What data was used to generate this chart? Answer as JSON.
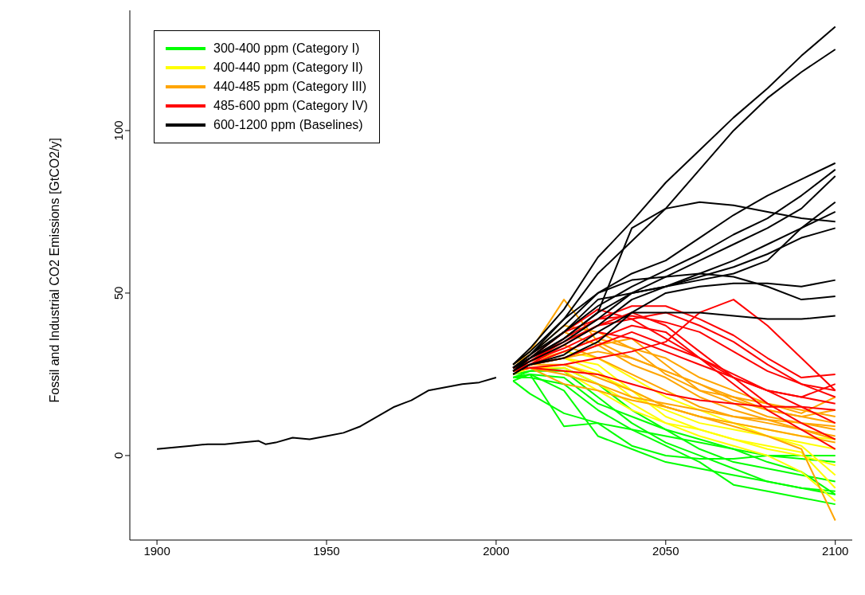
{
  "chart_data": {
    "type": "line",
    "ylabel": "Fossil and Industrial CO2 Emissions [GtCO2/y]",
    "xlim": [
      1892,
      2105
    ],
    "xticks": [
      1900,
      1950,
      2000,
      2050,
      2100
    ],
    "ylim": [
      -26,
      137
    ],
    "yticks": [
      0,
      50,
      100
    ],
    "legend": "top left",
    "grid": false,
    "series": [
      {
        "color": "#000000",
        "x": [
          1900,
          1905,
          1910,
          1915,
          1920,
          1925,
          1930,
          1932,
          1935,
          1940,
          1945,
          1950,
          1955,
          1960,
          1965,
          1970,
          1975,
          1980,
          1985,
          1990,
          1995,
          2000
        ],
        "values": [
          2,
          2.5,
          3,
          3.5,
          3.5,
          4,
          4.5,
          3.5,
          4,
          5.5,
          5,
          6,
          7,
          9,
          12,
          15,
          17,
          20,
          21,
          22,
          22.5,
          24
        ]
      },
      {
        "name": "300-400 ppm (Category I)",
        "color": "#00ff00",
        "x": [
          2005,
          2010,
          2020,
          2030,
          2040,
          2050,
          2060,
          2070,
          2080,
          2090,
          2100
        ],
        "values": [
          24,
          25,
          9,
          10,
          8,
          6,
          4,
          2,
          0,
          -1,
          -2
        ]
      },
      {
        "color": "#00ff00",
        "x": [
          2005,
          2010,
          2020,
          2030,
          2040,
          2050,
          2060,
          2070,
          2080,
          2090,
          2100
        ],
        "values": [
          23,
          19,
          13,
          10,
          3,
          0,
          -1,
          -1,
          0,
          0,
          0
        ]
      },
      {
        "color": "#00ff00",
        "x": [
          2005,
          2010,
          2020,
          2030,
          2040,
          2050,
          2060,
          2070,
          2080,
          2090,
          2100
        ],
        "values": [
          24,
          24,
          22,
          14,
          8,
          3,
          -2,
          -9,
          -11,
          -13,
          -15
        ]
      },
      {
        "color": "#00ff00",
        "x": [
          2005,
          2010,
          2020,
          2030,
          2040,
          2050,
          2060,
          2070,
          2080,
          2090,
          2100
        ],
        "values": [
          23,
          25,
          20,
          6,
          2,
          -2,
          -4,
          -6,
          -8,
          -10,
          -12
        ]
      },
      {
        "color": "#00ff00",
        "x": [
          2005,
          2010,
          2020,
          2030,
          2040,
          2050,
          2060,
          2070,
          2080,
          2090,
          2100
        ],
        "values": [
          24,
          26,
          26,
          18,
          10,
          4,
          0,
          -4,
          -8,
          -10,
          -11
        ]
      },
      {
        "color": "#00ff00",
        "x": [
          2005,
          2010,
          2020,
          2030,
          2040,
          2050,
          2060,
          2070,
          2080,
          2090,
          2100
        ],
        "values": [
          25,
          26,
          27,
          22,
          14,
          8,
          2,
          -2,
          -4,
          -6,
          -8
        ]
      },
      {
        "color": "#00ff00",
        "x": [
          2005,
          2010,
          2020,
          2030,
          2040,
          2050,
          2060,
          2070,
          2080,
          2090,
          2100
        ],
        "values": [
          24,
          25,
          24,
          16,
          12,
          8,
          5,
          2,
          -2,
          -5,
          -12
        ]
      },
      {
        "name": "400-440 ppm (Category II)",
        "color": "#ffff00",
        "x": [
          2005,
          2010,
          2020,
          2030,
          2040,
          2050,
          2060,
          2070,
          2080,
          2090,
          2100
        ],
        "values": [
          26,
          28,
          30,
          28,
          20,
          12,
          8,
          5,
          2,
          0,
          -3
        ]
      },
      {
        "color": "#ffff00",
        "x": [
          2005,
          2010,
          2020,
          2030,
          2040,
          2050,
          2060,
          2070,
          2080,
          2090,
          2100
        ],
        "values": [
          25,
          27,
          27,
          22,
          16,
          10,
          6,
          3,
          0,
          -5,
          -14
        ]
      },
      {
        "color": "#ffff00",
        "x": [
          2005,
          2010,
          2020,
          2030,
          2040,
          2050,
          2060,
          2070,
          2080,
          2090,
          2100
        ],
        "values": [
          26,
          28,
          32,
          30,
          24,
          18,
          14,
          10,
          6,
          3,
          -6
        ]
      },
      {
        "color": "#ffff00",
        "x": [
          2005,
          2010,
          2020,
          2030,
          2040,
          2050,
          2060,
          2070,
          2080,
          2090,
          2100
        ],
        "values": [
          26,
          27,
          28,
          25,
          20,
          15,
          12,
          10,
          8,
          6,
          5
        ]
      },
      {
        "color": "#ffff00",
        "x": [
          2005,
          2010,
          2020,
          2030,
          2040,
          2050,
          2060,
          2070,
          2080,
          2090,
          2100
        ],
        "values": [
          25,
          27,
          26,
          20,
          14,
          10,
          8,
          5,
          3,
          1,
          -10
        ]
      },
      {
        "color": "#ffff00",
        "x": [
          2005,
          2010,
          2020,
          2030,
          2040,
          2050,
          2060,
          2070,
          2080,
          2090,
          2100
        ],
        "values": [
          26,
          28,
          30,
          26,
          18,
          14,
          10,
          8,
          6,
          4,
          2
        ]
      },
      {
        "name": "440-485 ppm (Category III)",
        "color": "#ffa500",
        "x": [
          2005,
          2010,
          2020,
          2030,
          2040,
          2050,
          2060,
          2070,
          2080,
          2090,
          2100
        ],
        "values": [
          28,
          32,
          48,
          35,
          30,
          26,
          22,
          18,
          14,
          12,
          10
        ]
      },
      {
        "color": "#ffa500",
        "x": [
          2005,
          2010,
          2020,
          2030,
          2040,
          2050,
          2060,
          2070,
          2080,
          2090,
          2100
        ],
        "values": [
          27,
          29,
          34,
          30,
          25,
          20,
          15,
          12,
          10,
          8,
          6
        ]
      },
      {
        "color": "#ffa500",
        "x": [
          2005,
          2010,
          2020,
          2030,
          2040,
          2050,
          2060,
          2070,
          2080,
          2090,
          2100
        ],
        "values": [
          26,
          28,
          30,
          34,
          36,
          28,
          20,
          16,
          12,
          10,
          8
        ]
      },
      {
        "color": "#ffa500",
        "x": [
          2005,
          2010,
          2020,
          2030,
          2040,
          2050,
          2060,
          2070,
          2080,
          2090,
          2100
        ],
        "values": [
          26,
          27,
          22,
          20,
          17,
          15,
          12,
          9,
          6,
          2,
          -20
        ]
      },
      {
        "color": "#ffa500",
        "x": [
          2005,
          2010,
          2020,
          2030,
          2040,
          2050,
          2060,
          2070,
          2080,
          2090,
          2100
        ],
        "values": [
          27,
          30,
          38,
          34,
          28,
          24,
          18,
          14,
          11,
          8,
          5
        ]
      },
      {
        "color": "#ffa500",
        "x": [
          2005,
          2010,
          2020,
          2030,
          2040,
          2050,
          2060,
          2070,
          2080,
          2090,
          2100
        ],
        "values": [
          27,
          28,
          30,
          32,
          30,
          26,
          22,
          17,
          14,
          12,
          14
        ]
      },
      {
        "color": "#ffa500",
        "x": [
          2005,
          2010,
          2020,
          2030,
          2040,
          2050,
          2060,
          2070,
          2080,
          2090,
          2100
        ],
        "values": [
          26,
          28,
          28,
          24,
          20,
          15,
          12,
          10,
          8,
          6,
          4
        ]
      },
      {
        "color": "#ffa500",
        "x": [
          2005,
          2010,
          2020,
          2030,
          2040,
          2050,
          2060,
          2070,
          2080,
          2090,
          2100
        ],
        "values": [
          28,
          31,
          40,
          38,
          33,
          25,
          20,
          18,
          16,
          14,
          12
        ]
      },
      {
        "color": "#ffa500",
        "x": [
          2005,
          2010,
          2020,
          2030,
          2040,
          2050,
          2060,
          2070,
          2080,
          2090,
          2100
        ],
        "values": [
          26,
          27,
          25,
          22,
          18,
          16,
          14,
          12,
          11,
          10,
          9
        ]
      },
      {
        "color": "#ffa500",
        "x": [
          2005,
          2010,
          2020,
          2030,
          2040,
          2050,
          2060,
          2070,
          2080,
          2090,
          2100
        ],
        "values": [
          27,
          29,
          32,
          36,
          33,
          30,
          24,
          20,
          16,
          13,
          18
        ]
      },
      {
        "name": "485-600 ppm (Category IV)",
        "color": "#ff0000",
        "x": [
          2005,
          2010,
          2020,
          2030,
          2040,
          2050,
          2060,
          2070,
          2080,
          2090,
          2100
        ],
        "values": [
          27,
          30,
          38,
          42,
          46,
          46,
          42,
          37,
          30,
          24,
          25
        ]
      },
      {
        "color": "#ff0000",
        "x": [
          2005,
          2010,
          2020,
          2030,
          2040,
          2050,
          2060,
          2070,
          2080,
          2090,
          2100
        ],
        "values": [
          26,
          28,
          34,
          40,
          42,
          44,
          40,
          35,
          28,
          22,
          20
        ]
      },
      {
        "color": "#ff0000",
        "x": [
          2005,
          2010,
          2020,
          2030,
          2040,
          2050,
          2060,
          2070,
          2080,
          2090,
          2100
        ],
        "values": [
          26,
          27,
          28,
          30,
          32,
          35,
          44,
          48,
          40,
          30,
          20
        ]
      },
      {
        "color": "#ff0000",
        "x": [
          2005,
          2010,
          2020,
          2030,
          2040,
          2050,
          2060,
          2070,
          2080,
          2090,
          2100
        ],
        "values": [
          27,
          29,
          33,
          38,
          36,
          32,
          28,
          24,
          20,
          18,
          16
        ]
      },
      {
        "color": "#ff0000",
        "x": [
          2005,
          2010,
          2020,
          2030,
          2040,
          2050,
          2060,
          2070,
          2080,
          2090,
          2100
        ],
        "values": [
          26,
          27,
          26,
          25,
          22,
          19,
          17,
          16,
          15,
          15,
          14
        ]
      },
      {
        "color": "#ff0000",
        "x": [
          2005,
          2010,
          2020,
          2030,
          2040,
          2050,
          2060,
          2070,
          2080,
          2090,
          2100
        ],
        "values": [
          27,
          30,
          38,
          45,
          42,
          36,
          30,
          25,
          20,
          15,
          10
        ]
      },
      {
        "color": "#ff0000",
        "x": [
          2005,
          2010,
          2020,
          2030,
          2040,
          2050,
          2060,
          2070,
          2080,
          2090,
          2100
        ],
        "values": [
          26,
          29,
          35,
          40,
          44,
          40,
          32,
          24,
          16,
          10,
          5
        ]
      },
      {
        "color": "#ff0000",
        "x": [
          2005,
          2010,
          2020,
          2030,
          2040,
          2050,
          2060,
          2070,
          2080,
          2090,
          2100
        ],
        "values": [
          27,
          28,
          30,
          34,
          38,
          34,
          30,
          24,
          20,
          18,
          22
        ]
      },
      {
        "color": "#ff0000",
        "x": [
          2005,
          2010,
          2020,
          2030,
          2040,
          2050,
          2060,
          2070,
          2080,
          2090,
          2100
        ],
        "values": [
          26,
          28,
          32,
          36,
          40,
          38,
          30,
          22,
          14,
          8,
          2
        ]
      },
      {
        "color": "#ff0000",
        "x": [
          2005,
          2010,
          2020,
          2030,
          2040,
          2050,
          2060,
          2070,
          2080,
          2090,
          2100
        ],
        "values": [
          27,
          29,
          36,
          42,
          43,
          41,
          38,
          32,
          26,
          22,
          18
        ]
      },
      {
        "name": "600-1200 ppm (Baselines)",
        "color": "#000000",
        "x": [
          2005,
          2010,
          2020,
          2030,
          2040,
          2050,
          2060,
          2070,
          2080,
          2090,
          2100
        ],
        "values": [
          28,
          33,
          45,
          61,
          72,
          84,
          94,
          104,
          113,
          123,
          132
        ]
      },
      {
        "color": "#000000",
        "x": [
          2005,
          2010,
          2020,
          2030,
          2040,
          2050,
          2060,
          2070,
          2080,
          2090,
          2100
        ],
        "values": [
          28,
          32,
          42,
          56,
          66,
          76,
          88,
          100,
          110,
          118,
          125
        ]
      },
      {
        "color": "#000000",
        "x": [
          2005,
          2010,
          2020,
          2030,
          2040,
          2050,
          2060,
          2070,
          2080,
          2090,
          2100
        ],
        "values": [
          27,
          31,
          40,
          50,
          56,
          60,
          67,
          74,
          80,
          85,
          90
        ]
      },
      {
        "color": "#000000",
        "x": [
          2005,
          2010,
          2020,
          2030,
          2040,
          2050,
          2060,
          2070,
          2080,
          2090,
          2100
        ],
        "values": [
          27,
          31,
          38,
          46,
          52,
          57,
          62,
          68,
          73,
          80,
          88
        ]
      },
      {
        "color": "#000000",
        "x": [
          2005,
          2010,
          2020,
          2030,
          2040,
          2050,
          2060,
          2070,
          2080,
          2090,
          2100
        ],
        "values": [
          27,
          30,
          36,
          44,
          50,
          52,
          54,
          56,
          60,
          70,
          78
        ]
      },
      {
        "color": "#000000",
        "x": [
          2005,
          2010,
          2020,
          2030,
          2040,
          2050,
          2060,
          2070,
          2080,
          2090,
          2100
        ],
        "values": [
          26,
          30,
          36,
          44,
          70,
          76,
          78,
          77,
          75,
          73,
          72
        ]
      },
      {
        "color": "#000000",
        "x": [
          2005,
          2010,
          2020,
          2030,
          2040,
          2050,
          2060,
          2070,
          2080,
          2090,
          2100
        ],
        "values": [
          26,
          29,
          34,
          40,
          48,
          52,
          56,
          60,
          65,
          70,
          75
        ]
      },
      {
        "color": "#000000",
        "x": [
          2005,
          2010,
          2020,
          2030,
          2040,
          2050,
          2060,
          2070,
          2080,
          2090,
          2100
        ],
        "values": [
          25,
          28,
          31,
          38,
          44,
          50,
          52,
          53,
          53,
          52,
          54
        ]
      },
      {
        "color": "#000000",
        "x": [
          2005,
          2010,
          2020,
          2030,
          2040,
          2050,
          2060,
          2070,
          2080,
          2090,
          2100
        ],
        "values": [
          25,
          28,
          30,
          35,
          44,
          44,
          44,
          43,
          42,
          42,
          43
        ]
      },
      {
        "color": "#000000",
        "x": [
          2005,
          2010,
          2020,
          2030,
          2040,
          2050,
          2060,
          2070,
          2080,
          2090,
          2100
        ],
        "values": [
          26,
          30,
          38,
          48,
          50,
          52,
          55,
          58,
          62,
          67,
          70
        ]
      },
      {
        "color": "#000000",
        "x": [
          2005,
          2010,
          2020,
          2030,
          2040,
          2050,
          2060,
          2070,
          2080,
          2090,
          2100
        ],
        "values": [
          27,
          31,
          42,
          50,
          54,
          55,
          56,
          55,
          52,
          48,
          49
        ]
      },
      {
        "color": "#000000",
        "x": [
          2005,
          2010,
          2020,
          2030,
          2040,
          2050,
          2060,
          2070,
          2080,
          2090,
          2100
        ],
        "values": [
          27,
          30,
          35,
          42,
          50,
          55,
          60,
          65,
          70,
          76,
          86
        ]
      }
    ]
  }
}
